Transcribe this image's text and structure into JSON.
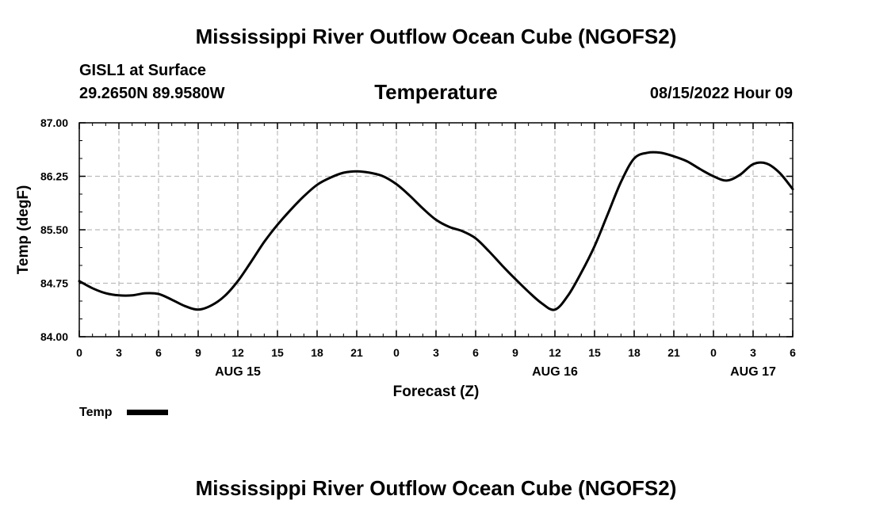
{
  "header": {
    "title": "Mississippi River Outflow Ocean Cube (NGOFS2)",
    "station": "GISL1 at Surface",
    "coordinates": "29.2650N  89.9580W",
    "chart_title": "Temperature",
    "datetime": "08/15/2022 Hour 09"
  },
  "footer": {
    "title": "Mississippi River Outflow Ocean Cube (NGOFS2)"
  },
  "legend": {
    "label": "Temp"
  },
  "colors": {
    "line": "#000000",
    "grid": "#bbbbbb",
    "background": "#ffffff"
  },
  "chart_data": {
    "type": "line",
    "title": "Temperature",
    "xlabel": "Forecast (Z)",
    "ylabel": "Temp (degF)",
    "ylim": [
      84.0,
      87.0
    ],
    "yticks": [
      "84.00",
      "84.75",
      "85.50",
      "86.25",
      "87.00"
    ],
    "xlim": [
      0,
      54
    ],
    "xticks": [
      0,
      3,
      6,
      9,
      12,
      15,
      18,
      21,
      24,
      27,
      30,
      33,
      36,
      39,
      42,
      45,
      48,
      51,
      54
    ],
    "xtick_labels": [
      "0",
      "3",
      "6",
      "9",
      "12",
      "15",
      "18",
      "21",
      "0",
      "3",
      "6",
      "9",
      "12",
      "15",
      "18",
      "21",
      "0",
      "3",
      "6"
    ],
    "day_labels": [
      {
        "x": 12,
        "label": "AUG 15"
      },
      {
        "x": 36,
        "label": "AUG 16"
      },
      {
        "x": 51,
        "label": "AUG 17"
      }
    ],
    "grid": true,
    "legend_position": "bottom-left",
    "series": [
      {
        "name": "Temp",
        "x": [
          0,
          1,
          2,
          3,
          4,
          5,
          6,
          7,
          8,
          9,
          10,
          11,
          12,
          13,
          14,
          15,
          16,
          17,
          18,
          19,
          20,
          21,
          22,
          23,
          24,
          25,
          26,
          27,
          28,
          29,
          30,
          31,
          32,
          33,
          34,
          35,
          36,
          37,
          38,
          39,
          40,
          41,
          42,
          43,
          44,
          45,
          46,
          47,
          48,
          49,
          50,
          51,
          52,
          53,
          54
        ],
        "values": [
          84.78,
          84.68,
          84.61,
          84.58,
          84.58,
          84.61,
          84.6,
          84.52,
          84.43,
          84.38,
          84.44,
          84.57,
          84.78,
          85.05,
          85.33,
          85.57,
          85.78,
          85.97,
          86.13,
          86.23,
          86.3,
          86.32,
          86.3,
          86.25,
          86.14,
          85.98,
          85.8,
          85.64,
          85.54,
          85.48,
          85.38,
          85.2,
          85.0,
          84.81,
          84.63,
          84.47,
          84.38,
          84.58,
          84.9,
          85.27,
          85.72,
          86.17,
          86.5,
          86.58,
          86.58,
          86.53,
          86.46,
          86.35,
          86.25,
          86.19,
          86.27,
          86.42,
          86.43,
          86.3,
          86.07
        ]
      }
    ]
  }
}
